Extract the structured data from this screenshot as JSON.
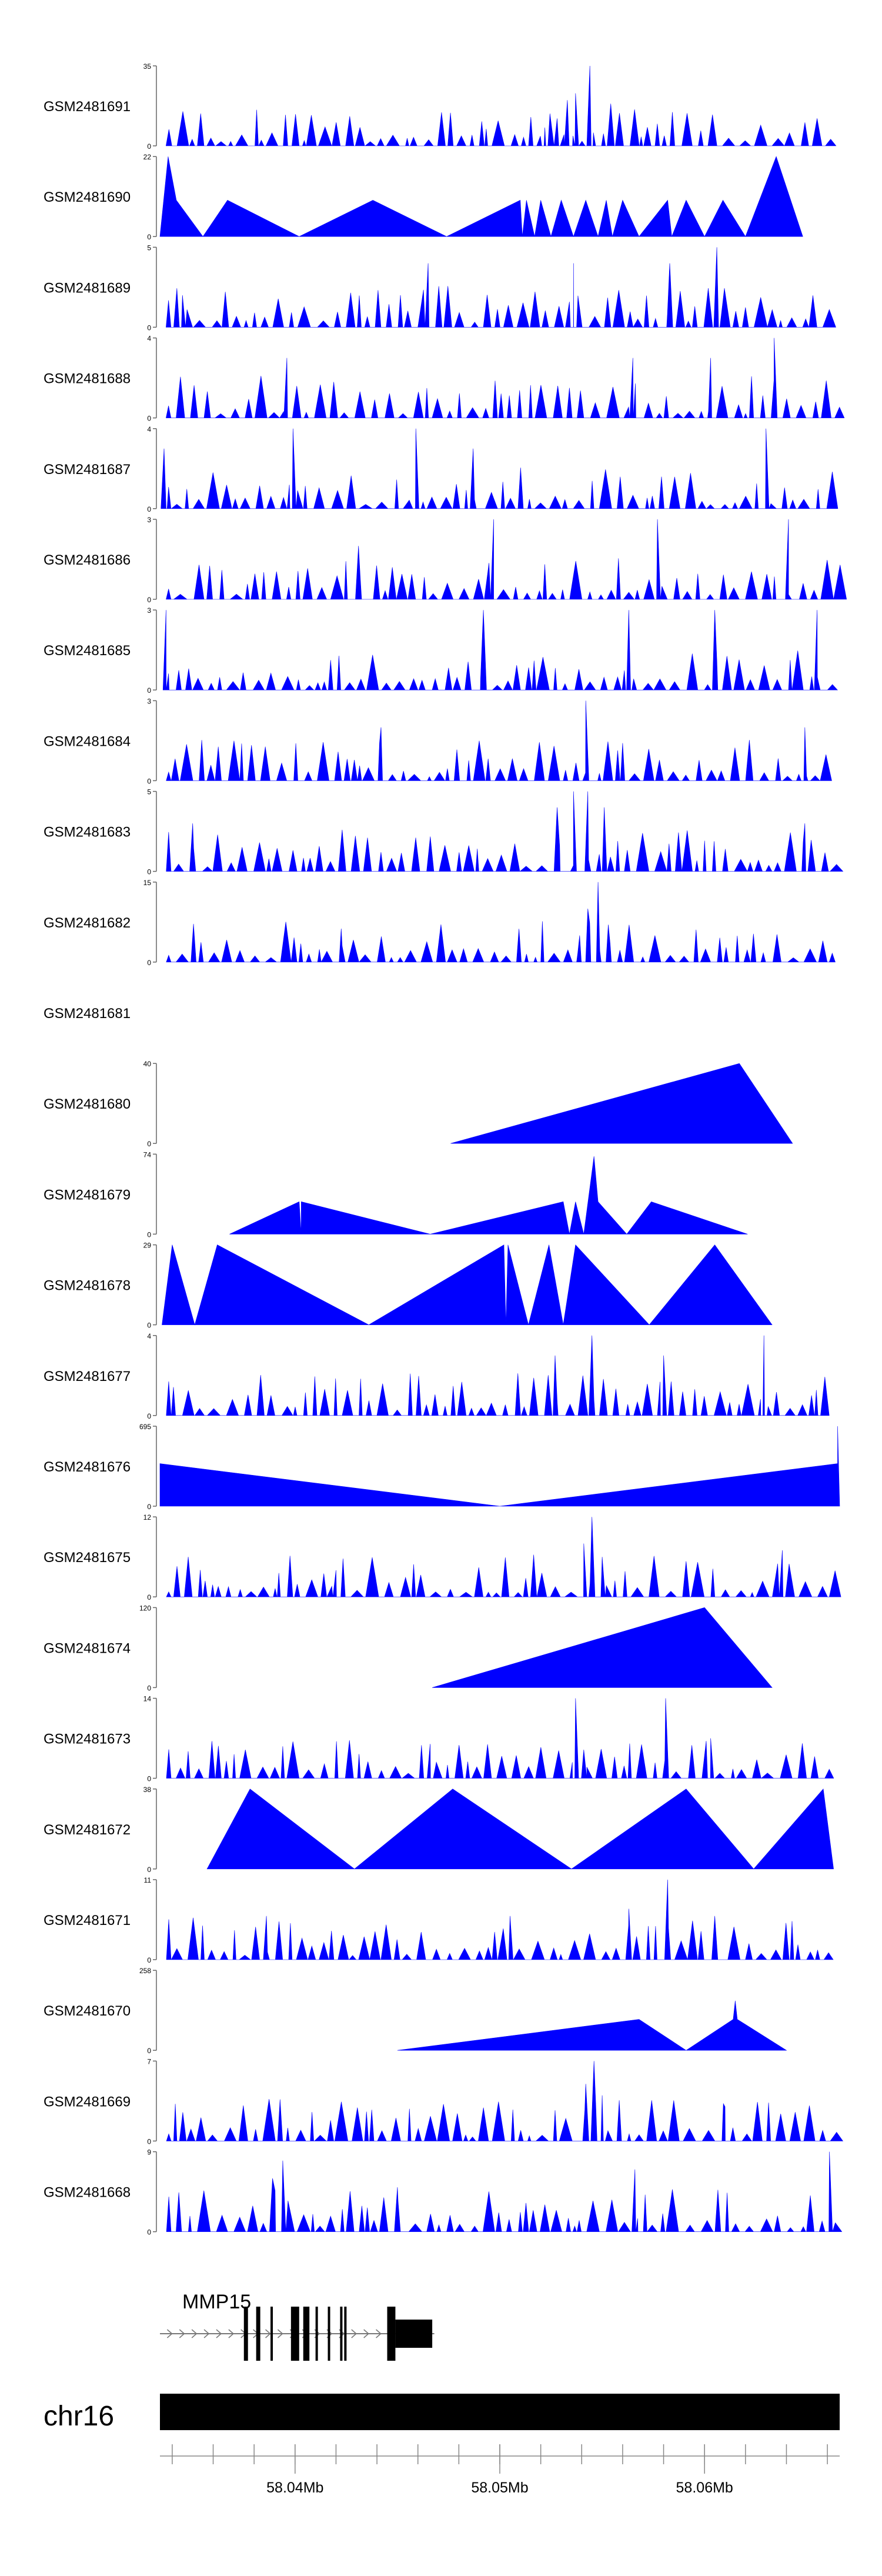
{
  "chart_data": {
    "type": "area",
    "title": "",
    "fill_color": "#0000ff",
    "tracks": [
      {
        "label": "GSM2481691",
        "ymax": "35",
        "ymin": "0",
        "shape": "spiky",
        "seed": 11,
        "max": 35,
        "peaks": [
          [
            58.0544,
            35
          ],
          [
            58.0537,
            23
          ],
          [
            58.0533,
            20
          ],
          [
            58.0528,
            12
          ],
          [
            58.0522,
            8
          ]
        ]
      },
      {
        "label": "GSM2481690",
        "ymax": "22",
        "ymin": "0",
        "shape": "tri",
        "max": 22,
        "pts": [
          [
            58.0334,
            0
          ],
          [
            58.0338,
            22
          ],
          [
            58.0342,
            10
          ],
          [
            58.0355,
            0
          ],
          [
            58.0367,
            10
          ],
          [
            58.0402,
            0
          ],
          [
            58.0438,
            10
          ],
          [
            58.0474,
            0
          ],
          [
            58.051,
            10
          ],
          [
            58.0511,
            0
          ],
          [
            58.0513,
            10
          ],
          [
            58.0517,
            0
          ],
          [
            58.052,
            10
          ],
          [
            58.0525,
            0
          ],
          [
            58.053,
            10
          ],
          [
            58.0536,
            0
          ],
          [
            58.0542,
            10
          ],
          [
            58.0548,
            0
          ],
          [
            58.0552,
            10
          ],
          [
            58.0555,
            0
          ],
          [
            58.056,
            10
          ],
          [
            58.0568,
            0
          ],
          [
            58.0582,
            10
          ],
          [
            58.0584,
            0
          ],
          [
            58.0591,
            10
          ],
          [
            58.06,
            0
          ],
          [
            58.0609,
            10
          ],
          [
            58.062,
            0
          ],
          [
            58.0635,
            22
          ],
          [
            58.0648,
            0
          ]
        ]
      },
      {
        "label": "GSM2481689",
        "ymax": "5",
        "ymin": "0",
        "shape": "spiky",
        "seed": 21,
        "max": 5,
        "peaks": [
          [
            58.0606,
            5
          ],
          [
            58.0583,
            4
          ],
          [
            58.0536,
            4
          ],
          [
            58.0465,
            4
          ],
          [
            58.0345,
            2
          ]
        ]
      },
      {
        "label": "GSM2481688",
        "ymax": "4",
        "ymin": "0",
        "shape": "spiky",
        "seed": 32,
        "max": 4,
        "peaks": [
          [
            58.0634,
            4
          ],
          [
            58.0565,
            3
          ],
          [
            58.0396,
            3
          ],
          [
            58.0603,
            3
          ]
        ]
      },
      {
        "label": "GSM2481687",
        "ymax": "4",
        "ymin": "0",
        "shape": "spiky",
        "seed": 43,
        "max": 4,
        "peaks": [
          [
            58.063,
            4
          ],
          [
            58.0399,
            4
          ],
          [
            58.0459,
            4
          ],
          [
            58.0336,
            3
          ],
          [
            58.0487,
            3
          ]
        ]
      },
      {
        "label": "GSM2481686",
        "ymax": "3",
        "ymin": "0",
        "shape": "spiky",
        "seed": 54,
        "max": 3,
        "peaks": [
          [
            58.0497,
            3
          ],
          [
            58.0641,
            3
          ],
          [
            58.0577,
            3
          ],
          [
            58.0431,
            2
          ]
        ]
      },
      {
        "label": "GSM2481685",
        "ymax": "3",
        "ymin": "0",
        "shape": "spiky",
        "seed": 65,
        "max": 3,
        "peaks": [
          [
            58.0337,
            3
          ],
          [
            58.0492,
            3
          ],
          [
            58.0563,
            3
          ],
          [
            58.0605,
            3
          ],
          [
            58.0655,
            3
          ]
        ]
      },
      {
        "label": "GSM2481684",
        "ymax": "3",
        "ymin": "0",
        "shape": "spiky",
        "seed": 76,
        "max": 3,
        "peaks": [
          [
            58.0542,
            3
          ],
          [
            58.0649,
            2
          ],
          [
            58.0442,
            2
          ]
        ]
      },
      {
        "label": "GSM2481683",
        "ymax": "5",
        "ymin": "0",
        "shape": "spiky",
        "seed": 87,
        "max": 5,
        "peaks": [
          [
            58.0536,
            5
          ],
          [
            58.0543,
            5
          ],
          [
            58.0528,
            4
          ],
          [
            58.0551,
            4
          ],
          [
            58.0649,
            3
          ],
          [
            58.035,
            3
          ]
        ]
      },
      {
        "label": "GSM2481682",
        "ymax": "15",
        "ymin": "0",
        "shape": "spiky",
        "seed": 98,
        "max": 15,
        "peaks": [
          [
            58.0548,
            15
          ],
          [
            58.0543,
            10
          ],
          [
            58.0553,
            7
          ],
          [
            58.0539,
            5
          ],
          [
            58.0423,
            3
          ]
        ]
      },
      {
        "label": "GSM2481681",
        "ymax": "",
        "ymin": "",
        "shape": "empty",
        "max": 1
      },
      {
        "label": "GSM2481680",
        "ymax": "40",
        "ymin": "0",
        "shape": "tri",
        "max": 40,
        "pts": [
          [
            58.0476,
            0
          ],
          [
            58.0617,
            40
          ],
          [
            58.0643,
            0
          ]
        ]
      },
      {
        "label": "GSM2481679",
        "ymax": "74",
        "ymin": "0",
        "shape": "tri",
        "max": 74,
        "pts": [
          [
            58.0368,
            0
          ],
          [
            58.0402,
            30
          ],
          [
            58.0403,
            0
          ],
          [
            58.0403,
            30
          ],
          [
            58.0466,
            0
          ],
          [
            58.0531,
            30
          ],
          [
            58.0534,
            0
          ],
          [
            58.0537,
            30
          ],
          [
            58.0541,
            0
          ],
          [
            58.0546,
            72
          ],
          [
            58.0548,
            30
          ],
          [
            58.0562,
            0
          ],
          [
            58.0574,
            30
          ],
          [
            58.0621,
            0
          ]
        ]
      },
      {
        "label": "GSM2481678",
        "ymax": "29",
        "ymin": "0",
        "shape": "tri",
        "max": 29,
        "pts": [
          [
            58.0335,
            0
          ],
          [
            58.034,
            29
          ],
          [
            58.0351,
            0
          ],
          [
            58.0362,
            29
          ],
          [
            58.0436,
            0
          ],
          [
            58.0502,
            29
          ],
          [
            58.0503,
            0
          ],
          [
            58.0504,
            29
          ],
          [
            58.0514,
            0
          ],
          [
            58.0524,
            29
          ],
          [
            58.0531,
            0
          ],
          [
            58.0537,
            29
          ],
          [
            58.0573,
            0
          ],
          [
            58.0605,
            29
          ],
          [
            58.0633,
            0
          ]
        ]
      },
      {
        "label": "GSM2481677",
        "ymax": "4",
        "ymin": "0",
        "shape": "spiky",
        "seed": 109,
        "max": 4,
        "peaks": [
          [
            58.0545,
            4
          ],
          [
            58.0629,
            4
          ],
          [
            58.0527,
            3
          ],
          [
            58.058,
            3
          ]
        ]
      },
      {
        "label": "GSM2481676",
        "ymax": "695",
        "ymin": "0",
        "shape": "tri",
        "max": 695,
        "pts": [
          [
            58.0334,
            0
          ],
          [
            58.0334,
            370
          ],
          [
            58.05,
            0
          ],
          [
            58.0665,
            370
          ],
          [
            58.0665,
            695
          ],
          [
            58.0666,
            0
          ]
        ]
      },
      {
        "label": "GSM2481675",
        "ymax": "12",
        "ymin": "0",
        "shape": "spiky",
        "seed": 120,
        "max": 12,
        "peaks": [
          [
            58.0545,
            12
          ],
          [
            58.0541,
            8
          ],
          [
            58.055,
            6
          ],
          [
            58.0638,
            7
          ],
          [
            58.042,
            4
          ]
        ]
      },
      {
        "label": "GSM2481674",
        "ymax": "120",
        "ymin": "0",
        "shape": "tri",
        "max": 120,
        "pts": [
          [
            58.0467,
            0
          ],
          [
            58.06,
            120
          ],
          [
            58.0633,
            0
          ]
        ]
      },
      {
        "label": "GSM2481673",
        "ymax": "14",
        "ymin": "0",
        "shape": "spiky",
        "seed": 131,
        "max": 14,
        "peaks": [
          [
            58.0537,
            14
          ],
          [
            58.0581,
            14
          ],
          [
            58.0603,
            7
          ],
          [
            58.0466,
            6
          ],
          [
            58.0541,
            5
          ]
        ]
      },
      {
        "label": "GSM2481672",
        "ymax": "38",
        "ymin": "0",
        "shape": "tri",
        "max": 38,
        "pts": [
          [
            58.0357,
            0
          ],
          [
            58.0378,
            38
          ],
          [
            58.0429,
            0
          ],
          [
            58.0477,
            38
          ],
          [
            58.0535,
            0
          ],
          [
            58.0591,
            38
          ],
          [
            58.0624,
            0
          ],
          [
            58.0658,
            38
          ],
          [
            58.0663,
            0
          ]
        ]
      },
      {
        "label": "GSM2481671",
        "ymax": "11",
        "ymin": "0",
        "shape": "spiky",
        "seed": 142,
        "max": 11,
        "peaks": [
          [
            58.0582,
            11
          ],
          [
            58.0563,
            7
          ],
          [
            58.0605,
            6
          ],
          [
            58.0505,
            6
          ],
          [
            58.0386,
            6
          ]
        ]
      },
      {
        "label": "GSM2481670",
        "ymax": "258",
        "ymin": "0",
        "shape": "tri",
        "max": 258,
        "pts": [
          [
            58.045,
            0
          ],
          [
            58.0568,
            100
          ],
          [
            58.0591,
            0
          ],
          [
            58.0614,
            100
          ],
          [
            58.0615,
            160
          ],
          [
            58.0616,
            100
          ],
          [
            58.064,
            0
          ]
        ]
      },
      {
        "label": "GSM2481669",
        "ymax": "7",
        "ymin": "0",
        "shape": "spiky",
        "seed": 153,
        "max": 7,
        "peaks": [
          [
            58.0546,
            7
          ],
          [
            58.0542,
            5
          ],
          [
            58.055,
            4
          ],
          [
            58.061,
            3
          ]
        ]
      },
      {
        "label": "GSM2481668",
        "ymax": "9",
        "ymin": "0",
        "shape": "spiky",
        "seed": 164,
        "max": 9,
        "peaks": [
          [
            58.0661,
            9
          ],
          [
            58.0394,
            8
          ],
          [
            58.0566,
            7
          ],
          [
            58.0389,
            6
          ],
          [
            58.045,
            5
          ]
        ]
      }
    ],
    "gene": {
      "name": "MMP15",
      "strand": "+",
      "start": 58.0334,
      "end": 58.0468,
      "exons": [
        [
          58.0375,
          58.0377
        ],
        [
          58.0381,
          58.0383
        ],
        [
          58.0388,
          58.0389
        ],
        [
          58.0398,
          58.0402
        ],
        [
          58.0404,
          58.0407
        ],
        [
          58.041,
          58.0411
        ],
        [
          58.0416,
          58.0417
        ],
        [
          58.0422,
          58.0423
        ],
        [
          58.0424,
          58.0425
        ],
        [
          58.0445,
          58.0449
        ]
      ],
      "utr": [
        [
          58.0449,
          58.0467
        ]
      ]
    },
    "chromosome": "chr16",
    "xaxis": {
      "min": 58.0334,
      "max": 58.0666,
      "tick_step": 0.002,
      "major_ticks": [
        58.04,
        58.05,
        58.06
      ],
      "tick_labels": [
        "58.04Mb",
        "58.05Mb",
        "58.06Mb"
      ]
    }
  }
}
